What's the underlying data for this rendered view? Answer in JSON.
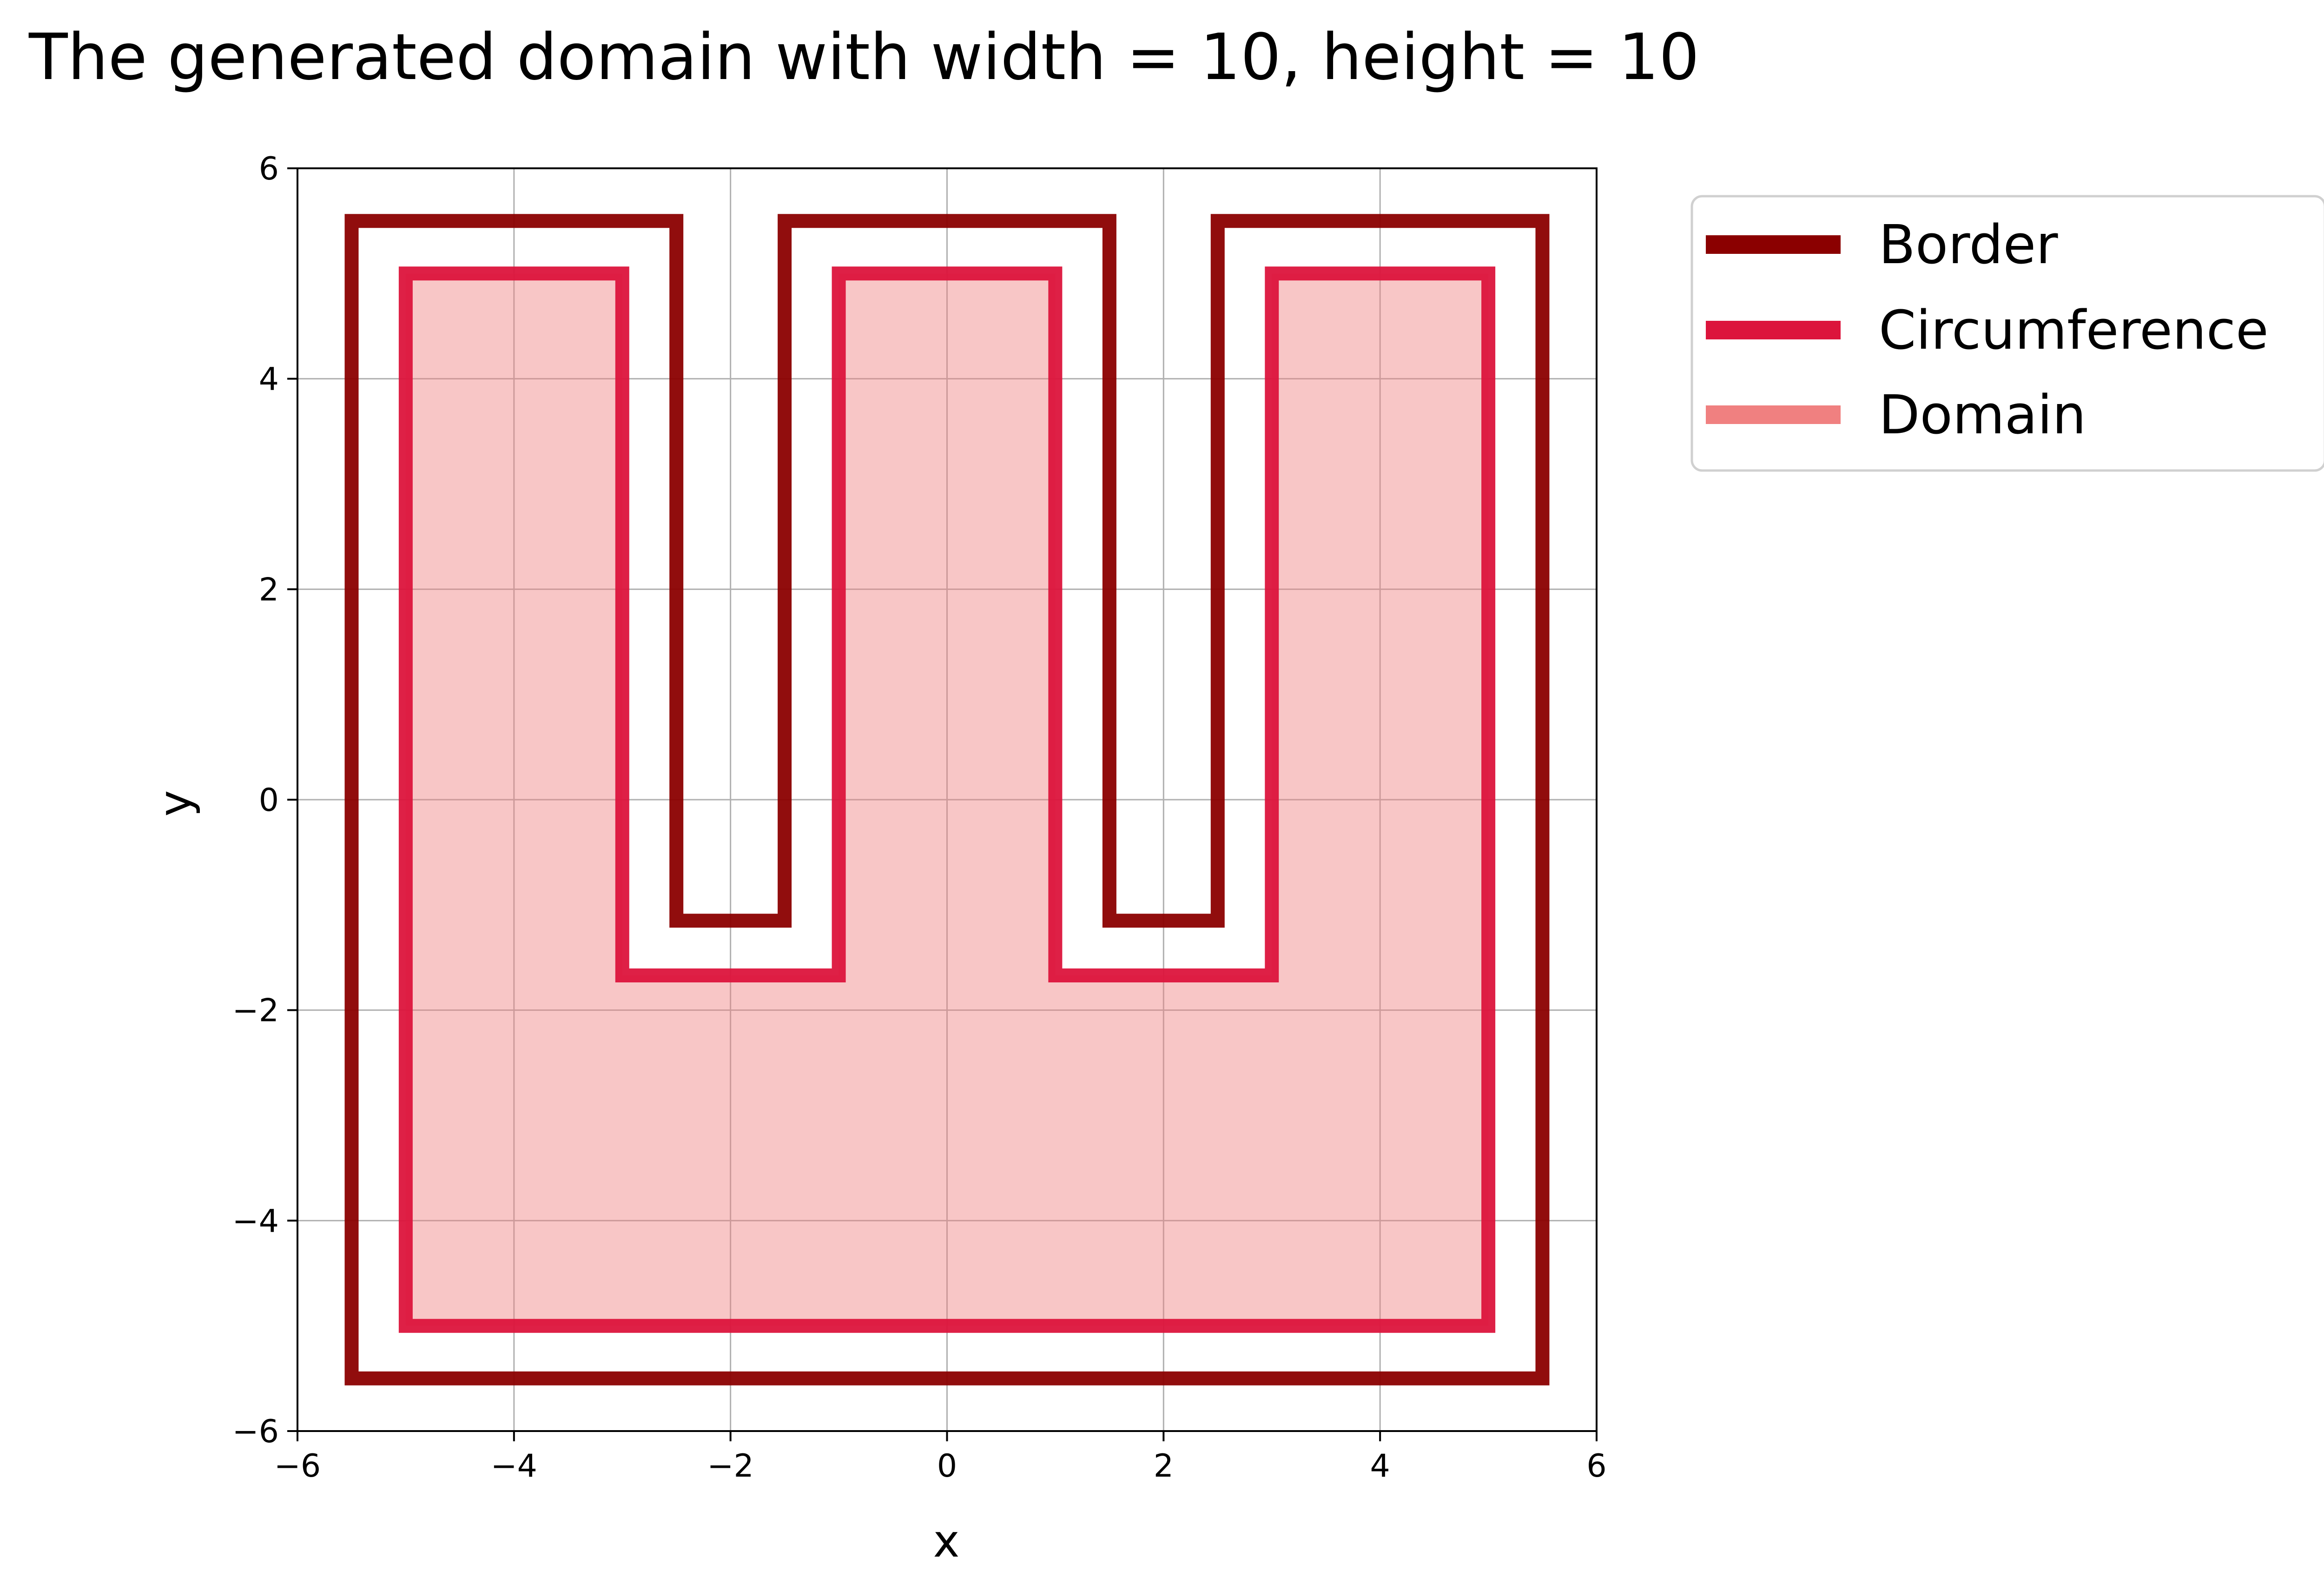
{
  "chart_data": {
    "type": "line",
    "title": "The generated domain with width = 10, height = 10",
    "xlabel": "x",
    "ylabel": "y",
    "xlim": [
      -6,
      6
    ],
    "ylim": [
      -6,
      6
    ],
    "xticks": [
      -6,
      -4,
      -2,
      0,
      2,
      4,
      6
    ],
    "yticks": [
      -6,
      -4,
      -2,
      0,
      2,
      4,
      6
    ],
    "xtick_labels": [
      "−6",
      "−4",
      "−2",
      "0",
      "2",
      "4",
      "6"
    ],
    "ytick_labels": [
      "−6",
      "−4",
      "−2",
      "0",
      "2",
      "4",
      "6"
    ],
    "grid": true,
    "legend_position": "outside-top-right",
    "series": [
      {
        "name": "Border",
        "color": "#8b0000",
        "closed": true,
        "points": [
          [
            -5.5,
            -5.5
          ],
          [
            5.5,
            -5.5
          ],
          [
            5.5,
            5.5
          ],
          [
            2.5,
            5.5
          ],
          [
            2.5,
            -1.15
          ],
          [
            1.5,
            -1.15
          ],
          [
            1.5,
            5.5
          ],
          [
            -1.5,
            5.5
          ],
          [
            -1.5,
            -1.15
          ],
          [
            -2.5,
            -1.15
          ],
          [
            -2.5,
            5.5
          ],
          [
            -5.5,
            5.5
          ]
        ]
      },
      {
        "name": "Circumference",
        "color": "#dc143c",
        "closed": true,
        "points": [
          [
            -5,
            -5
          ],
          [
            5,
            -5
          ],
          [
            5,
            5
          ],
          [
            3,
            5
          ],
          [
            3,
            -1.67
          ],
          [
            1,
            -1.67
          ],
          [
            1,
            5
          ],
          [
            -1,
            5
          ],
          [
            -1,
            -1.67
          ],
          [
            -3,
            -1.67
          ],
          [
            -3,
            5
          ],
          [
            -5,
            5
          ]
        ]
      },
      {
        "name": "Domain",
        "color": "#f08080",
        "fill": true,
        "points": [
          [
            -5,
            -5
          ],
          [
            5,
            -5
          ],
          [
            5,
            5
          ],
          [
            3,
            5
          ],
          [
            3,
            -1.67
          ],
          [
            1,
            -1.67
          ],
          [
            1,
            5
          ],
          [
            -1,
            5
          ],
          [
            -1,
            -1.67
          ],
          [
            -3,
            -1.67
          ],
          [
            -3,
            5
          ],
          [
            -5,
            5
          ]
        ]
      }
    ]
  }
}
